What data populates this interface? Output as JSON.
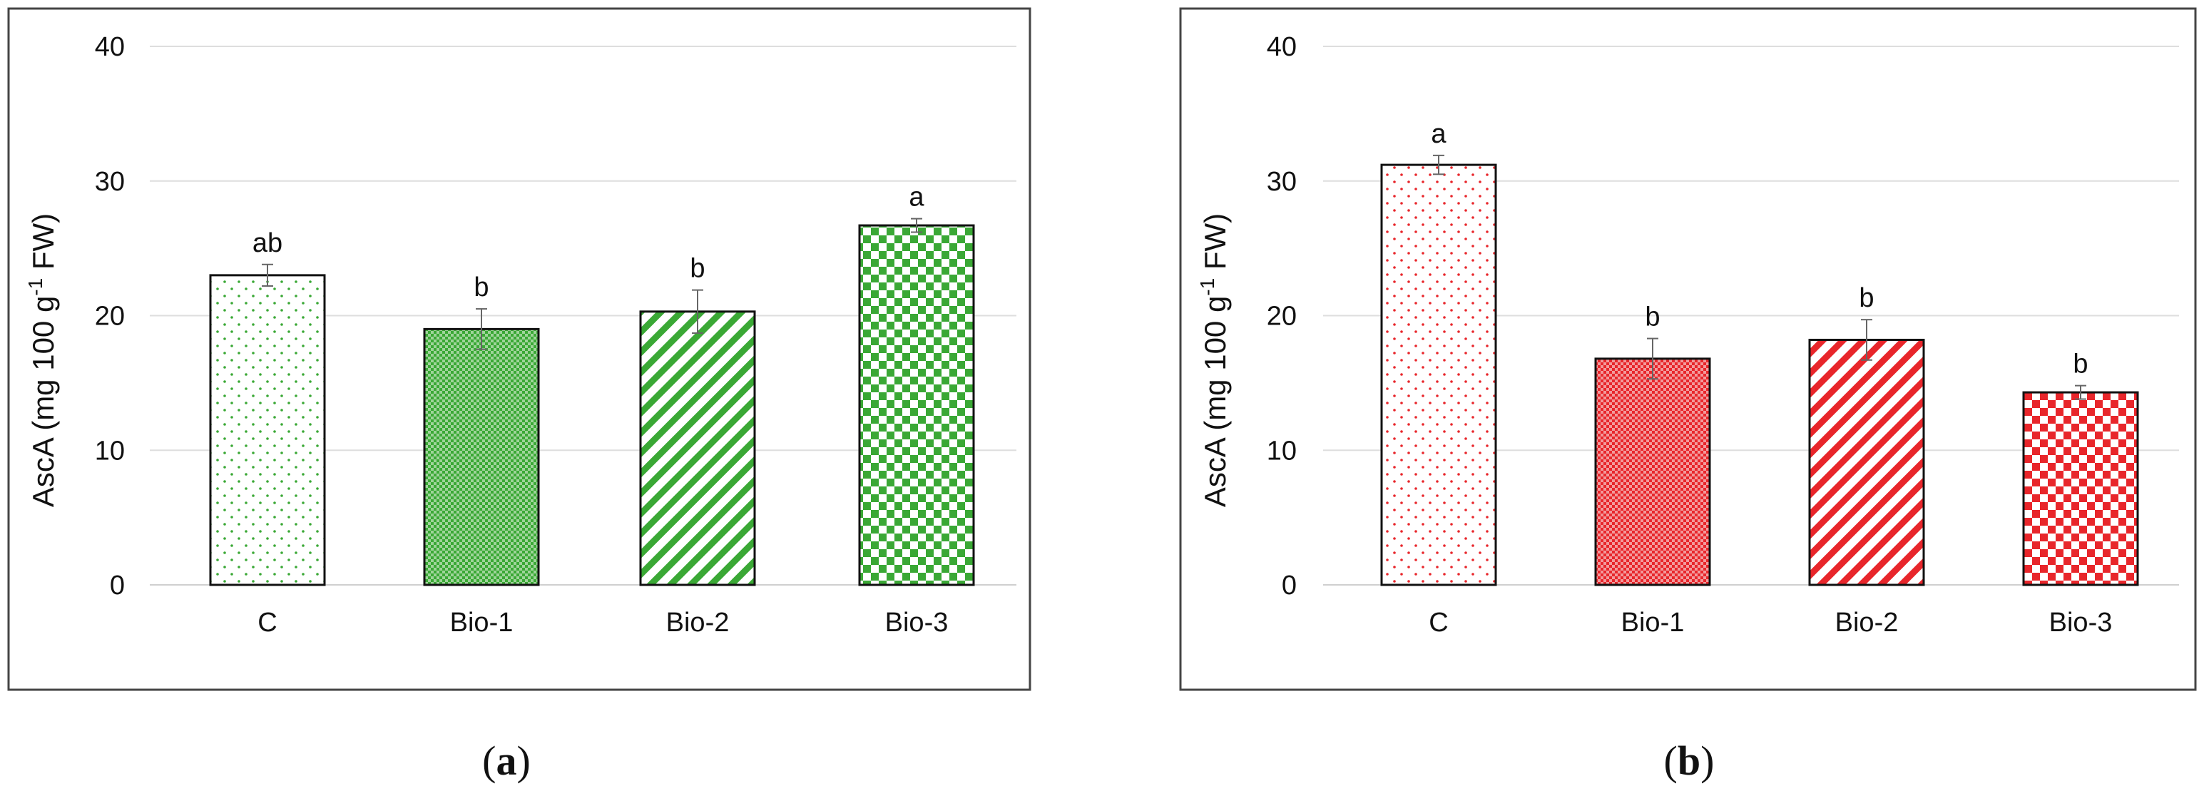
{
  "chart_data": [
    {
      "type": "bar",
      "panel_label": [
        "(",
        "a",
        ")"
      ],
      "ylabel_parts": [
        "AscA (mg 100 g",
        "-1",
        " FW)"
      ],
      "categories": [
        "C",
        "Bio-1",
        "Bio-2",
        "Bio-3"
      ],
      "values": [
        23.0,
        19.0,
        20.3,
        26.7
      ],
      "errors": [
        0.8,
        1.5,
        1.6,
        0.5
      ],
      "significance": [
        "ab",
        "b",
        "b",
        "a"
      ],
      "ylim": [
        0,
        40
      ],
      "yticks": [
        0,
        10,
        20,
        30,
        40
      ],
      "grid": true,
      "colors": {
        "fill": "#3aa835",
        "light": "#9fd49a"
      },
      "patterns": [
        "dots",
        "fine-check",
        "diagonal",
        "checker"
      ]
    },
    {
      "type": "bar",
      "panel_label": [
        "(",
        "b",
        ")"
      ],
      "ylabel_parts": [
        "AscA (mg 100 g",
        "-1",
        " FW)"
      ],
      "categories": [
        "C",
        "Bio-1",
        "Bio-2",
        "Bio-3"
      ],
      "values": [
        31.2,
        16.8,
        18.2,
        14.3
      ],
      "errors": [
        0.7,
        1.5,
        1.5,
        0.5
      ],
      "significance": [
        "a",
        "b",
        "b",
        "b"
      ],
      "ylim": [
        0,
        40
      ],
      "yticks": [
        0,
        10,
        20,
        30,
        40
      ],
      "grid": true,
      "colors": {
        "fill": "#e8262b",
        "light": "#f29a9c"
      },
      "patterns": [
        "dots",
        "fine-check",
        "diagonal",
        "checker"
      ]
    }
  ]
}
